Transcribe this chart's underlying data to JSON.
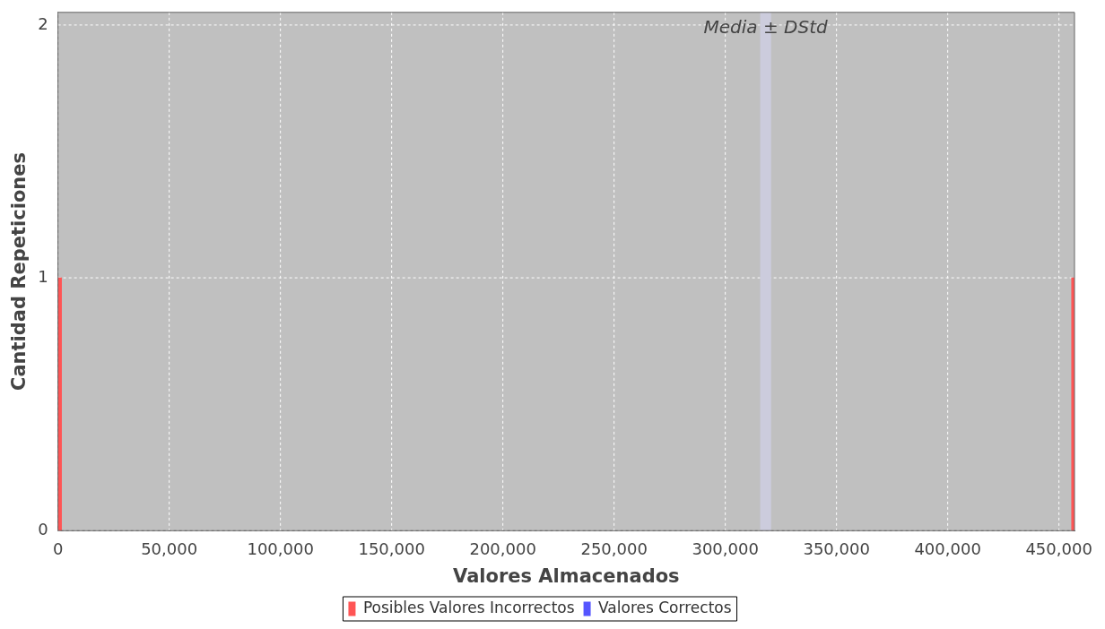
{
  "chart_data": {
    "type": "bar",
    "xlabel": "Valores Almacenados",
    "ylabel": "Cantidad Repeticiones",
    "series": [
      {
        "name": "Posibles Valores Incorrectos",
        "color": "#ff5555",
        "x": [
          800,
          456500
        ],
        "values": [
          1,
          1
        ]
      },
      {
        "name": "Valores Correctos",
        "color": "#5555ff"
      }
    ],
    "xlim": [
      0,
      457000
    ],
    "xticks": [
      {
        "value": 0,
        "label": "0"
      },
      {
        "value": 50000,
        "label": "50,000"
      },
      {
        "value": 100000,
        "label": "100,000"
      },
      {
        "value": 150000,
        "label": "150,000"
      },
      {
        "value": 200000,
        "label": "200,000"
      },
      {
        "value": 250000,
        "label": "250,000"
      },
      {
        "value": 300000,
        "label": "300,000"
      },
      {
        "value": 350000,
        "label": "350,000"
      },
      {
        "value": 400000,
        "label": "400,000"
      },
      {
        "value": 450000,
        "label": "450,000"
      }
    ],
    "ylim": [
      0,
      2.05
    ],
    "yticks": [
      0,
      1,
      2
    ],
    "bands": [
      {
        "axis": "x",
        "from": 315700,
        "to": 320600,
        "label": "Media ± DStd",
        "color": "#ccccdd"
      }
    ],
    "grid": true,
    "legend": "bottom"
  }
}
